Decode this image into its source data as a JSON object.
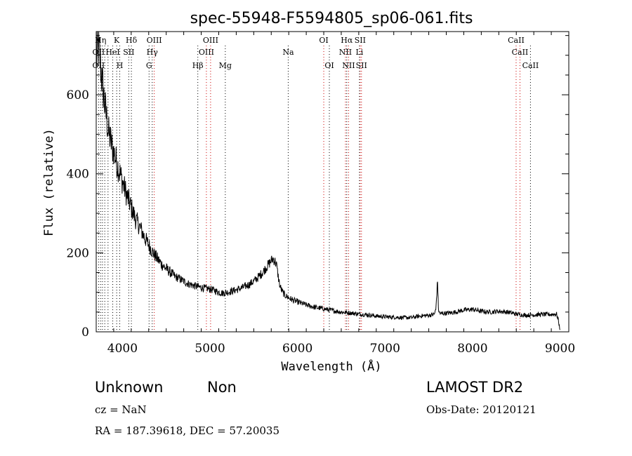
{
  "chart_data": {
    "type": "line",
    "title": "spec-55948-F5594805_sp06-061.fits",
    "xlabel": "Wavelength (Å)",
    "ylabel": "Flux (relative)",
    "xlim": [
      3700,
      9100
    ],
    "ylim": [
      0,
      760
    ],
    "x_ticks": [
      4000,
      5000,
      6000,
      7000,
      8000,
      9000
    ],
    "y_ticks": [
      0,
      200,
      400,
      600
    ],
    "grid": false,
    "series": [
      {
        "color": "#000000",
        "x": [
          3700,
          3720,
          3740,
          3760,
          3780,
          3800,
          3820,
          3840,
          3860,
          3880,
          3900,
          3920,
          3940,
          3960,
          3980,
          4000,
          4050,
          4100,
          4150,
          4200,
          4250,
          4300,
          4350,
          4400,
          4450,
          4500,
          4550,
          4600,
          4650,
          4700,
          4750,
          4800,
          4850,
          4900,
          4950,
          5000,
          5050,
          5100,
          5150,
          5200,
          5250,
          5300,
          5350,
          5400,
          5450,
          5500,
          5550,
          5600,
          5650,
          5700,
          5720,
          5740,
          5760,
          5780,
          5800,
          5830,
          5860,
          5900,
          5950,
          6000,
          6050,
          6100,
          6200,
          6300,
          6400,
          6500,
          6600,
          6700,
          6800,
          6900,
          7000,
          7100,
          7200,
          7300,
          7400,
          7500,
          7560,
          7580,
          7600,
          7610,
          7620,
          7640,
          7680,
          7750,
          7800,
          7900,
          8000,
          8100,
          8200,
          8300,
          8400,
          8500,
          8600,
          8700,
          8800,
          8900,
          8960,
          8980,
          9000
        ],
        "y": [
          690,
          720,
          700,
          650,
          610,
          570,
          540,
          505,
          490,
          470,
          455,
          440,
          425,
          410,
          395,
          380,
          345,
          315,
          285,
          265,
          240,
          220,
          200,
          185,
          170,
          160,
          150,
          140,
          135,
          128,
          122,
          118,
          115,
          112,
          110,
          108,
          105,
          100,
          98,
          100,
          103,
          106,
          110,
          115,
          120,
          128,
          138,
          150,
          165,
          180,
          185,
          180,
          170,
          140,
          115,
          100,
          92,
          86,
          80,
          76,
          72,
          68,
          62,
          58,
          54,
          50,
          48,
          45,
          43,
          40,
          38,
          37,
          36,
          36,
          40,
          42,
          44,
          55,
          130,
          60,
          48,
          46,
          47,
          48,
          50,
          55,
          57,
          52,
          50,
          52,
          50,
          45,
          42,
          43,
          44,
          44,
          45,
          30,
          5
        ]
      }
    ],
    "line_markers": [
      {
        "label": "OII",
        "x": 3727,
        "row": 3,
        "color": "#000000"
      },
      {
        "label": "Hη",
        "x": 3750,
        "row": 1,
        "color": "#000000"
      },
      {
        "label": "OII",
        "x": 3727,
        "row": 2,
        "color": "#000000"
      },
      {
        "label": "K",
        "x": 3934,
        "row": 1,
        "color": "#000000"
      },
      {
        "label": "H",
        "x": 3969,
        "row": 3,
        "color": "#000000"
      },
      {
        "label": "HeI",
        "x": 3889,
        "row": 2,
        "color": "#000000"
      },
      {
        "label": "SII",
        "x": 4072,
        "row": 2,
        "color": "#000000"
      },
      {
        "label": "Hδ",
        "x": 4102,
        "row": 1,
        "color": "#000000"
      },
      {
        "label": "OIII",
        "x": 4363,
        "row": 1,
        "color": "#000000"
      },
      {
        "label": "Hγ",
        "x": 4340,
        "row": 2,
        "color": "#000000"
      },
      {
        "label": "G",
        "x": 4304,
        "row": 3,
        "color": "#000000"
      },
      {
        "label": "Hβ",
        "x": 4861,
        "row": 3,
        "color": "#000000"
      },
      {
        "label": "OIII",
        "x": 5007,
        "row": 1,
        "color": "#000000"
      },
      {
        "label": "OIII",
        "x": 4959,
        "row": 2,
        "color": "#000000"
      },
      {
        "label": "Mg",
        "x": 5175,
        "row": 3,
        "color": "#000000"
      },
      {
        "label": "Na",
        "x": 5894,
        "row": 2,
        "color": "#000000"
      },
      {
        "label": "OI",
        "x": 6300,
        "row": 1,
        "color": "#000000"
      },
      {
        "label": "OI",
        "x": 6364,
        "row": 3,
        "color": "#000000"
      },
      {
        "label": "Hα",
        "x": 6563,
        "row": 1,
        "color": "#000000"
      },
      {
        "label": "SII",
        "x": 6716,
        "row": 1,
        "color": "#000000"
      },
      {
        "label": "NII",
        "x": 6548,
        "row": 2,
        "color": "#000000"
      },
      {
        "label": "Li",
        "x": 6708,
        "row": 2,
        "color": "#000000"
      },
      {
        "label": "NII",
        "x": 6584,
        "row": 3,
        "color": "#000000"
      },
      {
        "label": "SII",
        "x": 6731,
        "row": 3,
        "color": "#000000"
      },
      {
        "label": "CaII",
        "x": 8498,
        "row": 1,
        "color": "#000000"
      },
      {
        "label": "CaII",
        "x": 8542,
        "row": 2,
        "color": "#000000"
      },
      {
        "label": "CaII",
        "x": 8662,
        "row": 3,
        "color": "#000000"
      }
    ],
    "dotted_lines": [
      {
        "x": 3727,
        "color": "#000000"
      },
      {
        "x": 3750,
        "color": "#000000"
      },
      {
        "x": 3771,
        "color": "#000000"
      },
      {
        "x": 3798,
        "color": "#000000"
      },
      {
        "x": 3835,
        "color": "#000000"
      },
      {
        "x": 3889,
        "color": "#000000"
      },
      {
        "x": 3934,
        "color": "#000000"
      },
      {
        "x": 3969,
        "color": "#000000"
      },
      {
        "x": 4072,
        "color": "#000000"
      },
      {
        "x": 4102,
        "color": "#000000"
      },
      {
        "x": 4304,
        "color": "#000000"
      },
      {
        "x": 4340,
        "color": "#000000"
      },
      {
        "x": 4363,
        "color": "#cc0000"
      },
      {
        "x": 4861,
        "color": "#000000"
      },
      {
        "x": 4959,
        "color": "#cc0000"
      },
      {
        "x": 5007,
        "color": "#cc0000"
      },
      {
        "x": 5175,
        "color": "#000000"
      },
      {
        "x": 5894,
        "color": "#000000"
      },
      {
        "x": 6300,
        "color": "#cc0000"
      },
      {
        "x": 6364,
        "color": "#000000"
      },
      {
        "x": 6548,
        "color": "#cc0000"
      },
      {
        "x": 6563,
        "color": "#000000"
      },
      {
        "x": 6584,
        "color": "#cc0000"
      },
      {
        "x": 6708,
        "color": "#000000"
      },
      {
        "x": 6716,
        "color": "#cc0000"
      },
      {
        "x": 6731,
        "color": "#cc0000"
      },
      {
        "x": 8498,
        "color": "#cc0000"
      },
      {
        "x": 8542,
        "color": "#cc0000"
      },
      {
        "x": 8662,
        "color": "#000000"
      }
    ]
  },
  "info": {
    "class_label": "Unknown",
    "subclass_label": "Non",
    "survey": "LAMOST DR2",
    "cz": "cz = NaN",
    "obs_date": "Obs-Date: 20120121",
    "coords": "RA = 187.39618, DEC =  57.20035"
  }
}
